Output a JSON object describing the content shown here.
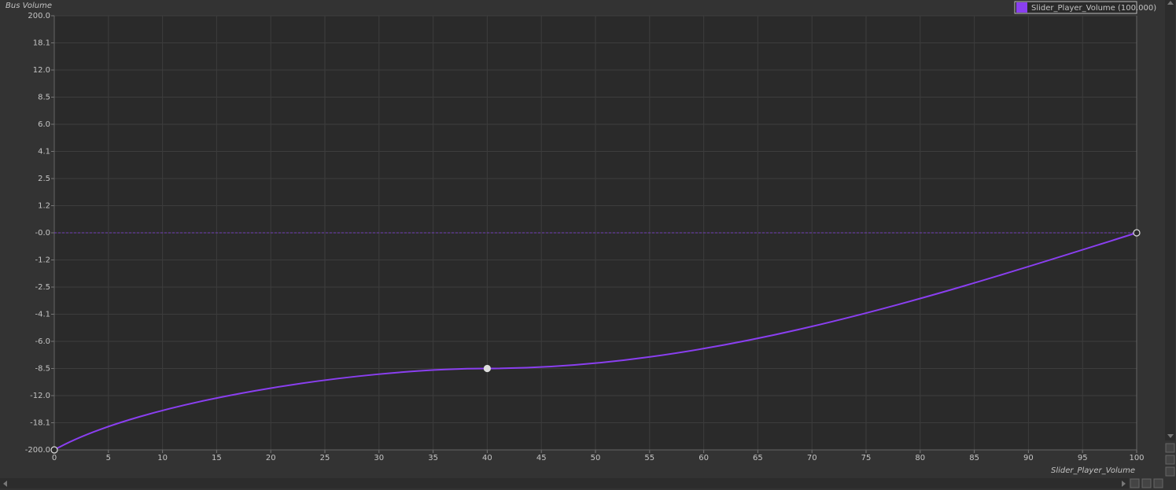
{
  "chart_data": {
    "type": "line",
    "ylabel": "Bus Volume",
    "xlabel": "Slider_Player_Volume",
    "x": [
      0,
      40,
      100
    ],
    "series": [
      {
        "name": "Slider_Player_Volume (100.000)",
        "color": "#8a3ff0",
        "values": [
          -200,
          -8.5,
          0
        ]
      }
    ],
    "xlim": [
      0,
      100
    ],
    "xticks": [
      0,
      5,
      10,
      15,
      20,
      25,
      30,
      35,
      40,
      45,
      50,
      55,
      60,
      65,
      70,
      75,
      80,
      85,
      90,
      95,
      100
    ],
    "ylim": [
      -200,
      200
    ],
    "yticks": [
      {
        "value": 200,
        "label": "200.0"
      },
      18.1,
      {
        "value": 12,
        "label": "12.0"
      },
      8.5,
      {
        "value": 6,
        "label": "6.0"
      },
      4.1,
      2.5,
      1.2,
      {
        "value": 0,
        "label": "-0.0"
      },
      -1.2,
      -2.5,
      -4.1,
      {
        "value": -6,
        "label": "-6.0"
      },
      -8.5,
      {
        "value": -12,
        "label": "-12.0"
      },
      -18.1,
      {
        "value": -200,
        "label": "-200.0"
      }
    ],
    "grid": true,
    "legend": "upper right"
  }
}
